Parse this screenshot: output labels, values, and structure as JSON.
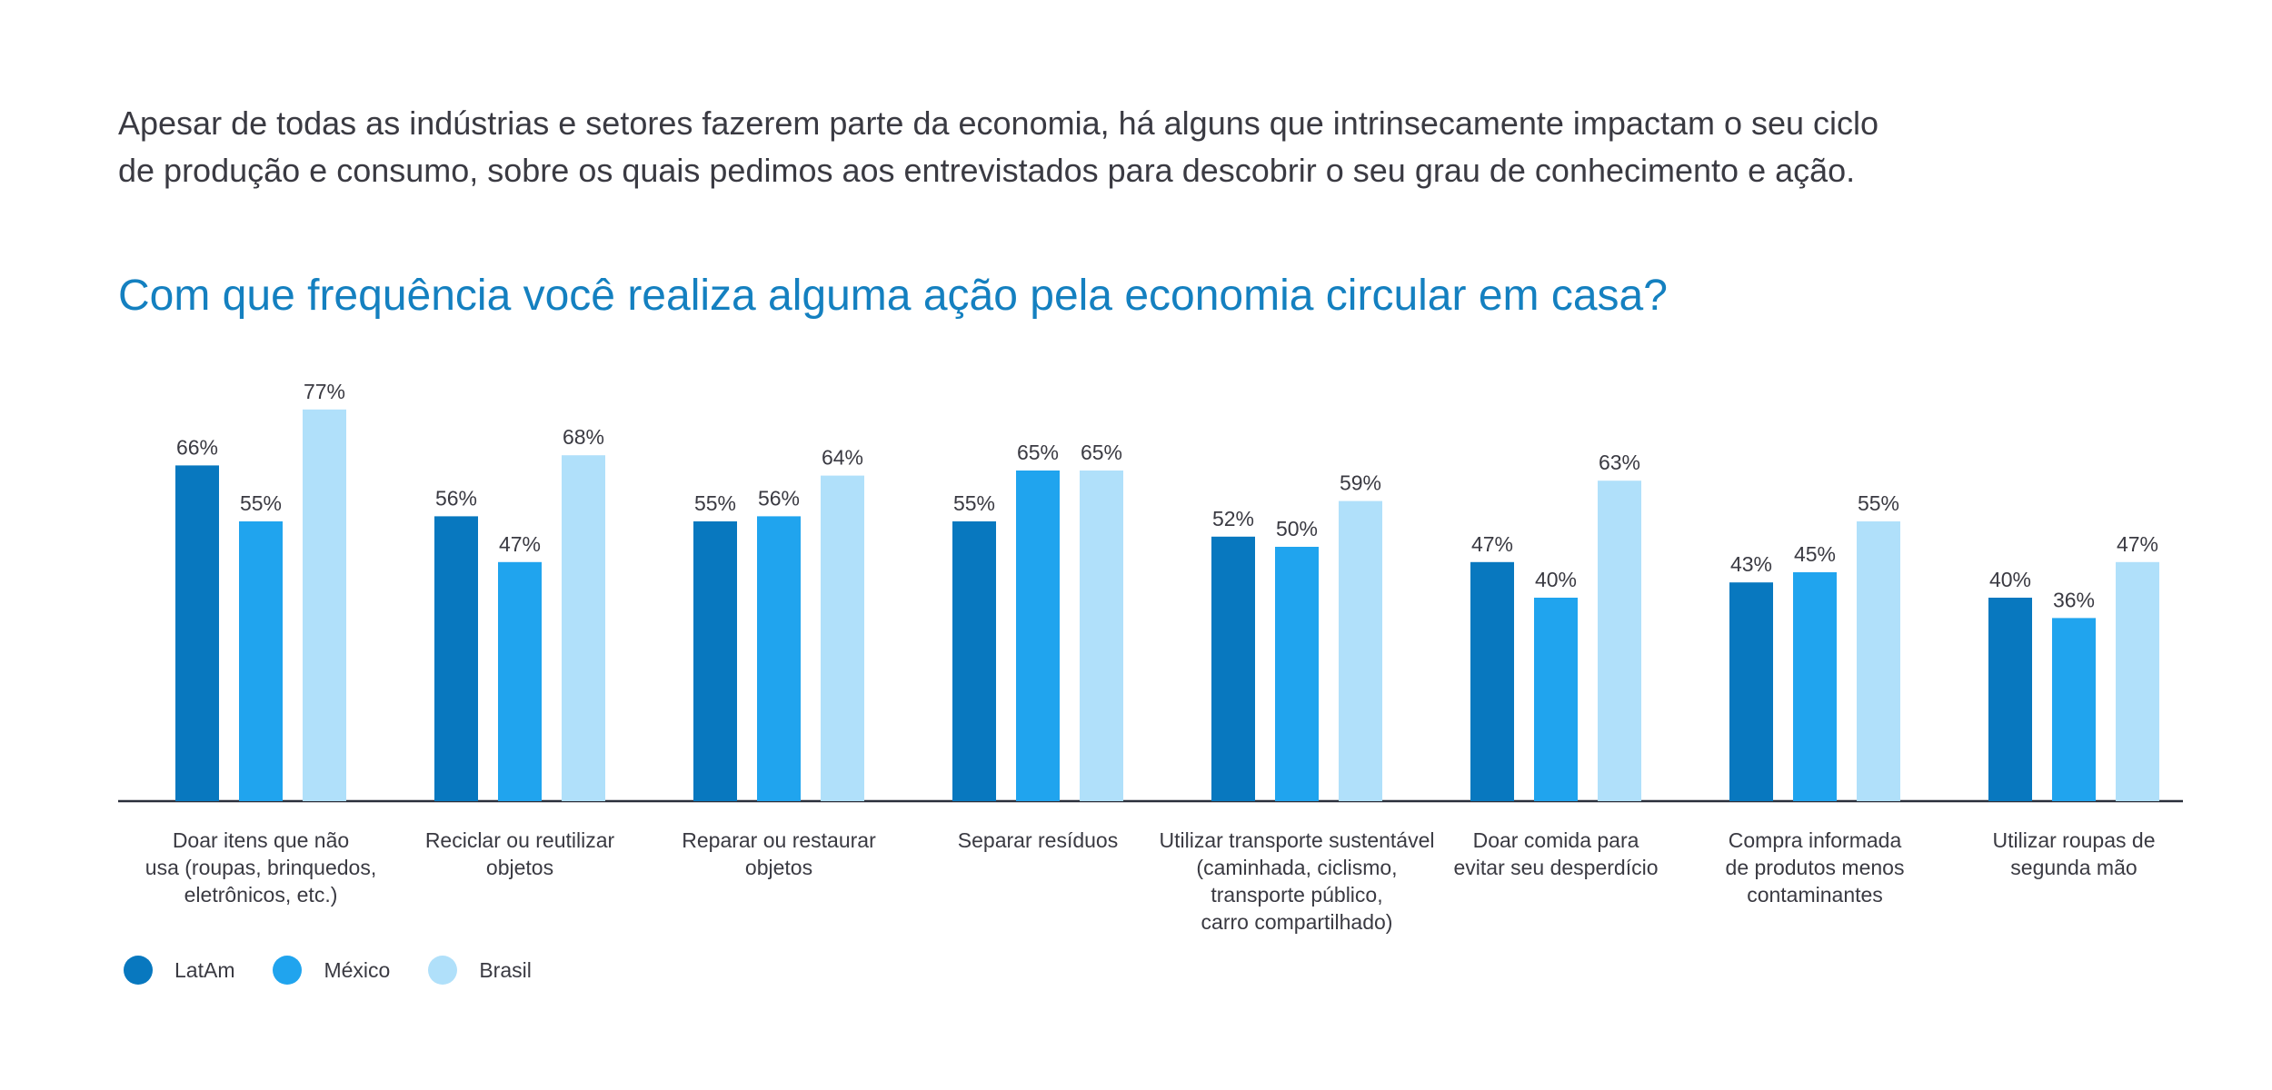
{
  "intro": {
    "line1": "Apesar de todas as indústrias e setores fazerem parte da economia, há alguns que intrinsecamente impactam o seu ciclo",
    "line2": "de produção e consumo, sobre os quais pedimos aos entrevistados para descobrir o seu grau de conhecimento e ação."
  },
  "chart_data": {
    "type": "bar",
    "title": "Com que frequência você realiza alguma ação pela economia circular em casa?",
    "value_suffix": "%",
    "ylim": [
      0,
      100
    ],
    "grid": false,
    "legend_position": "bottom-left",
    "categories": [
      "Doar itens que não usa (roupas, brinquedos, eletrônicos, etc.)",
      "Reciclar ou reutilizar objetos",
      "Reparar ou restaurar objetos",
      "Separar resíduos",
      "Utilizar transporte sustentável (caminhada, ciclismo, transporte público, carro compartilhado)",
      "Doar comida para evitar seu desperdício",
      "Compra informada de produtos menos contaminantes",
      "Utilizar roupas de segunda mão"
    ],
    "category_label_lines": [
      [
        "Doar itens que não",
        "usa (roupas, brinquedos,",
        "eletrônicos, etc.)"
      ],
      [
        "Reciclar ou reutilizar",
        "objetos"
      ],
      [
        "Reparar ou restaurar",
        "objetos"
      ],
      [
        "Separar resíduos"
      ],
      [
        "Utilizar transporte sustentável",
        "(caminhada, ciclismo,",
        "transporte público,",
        "carro compartilhado)"
      ],
      [
        "Doar comida para",
        "evitar seu desperdício"
      ],
      [
        "Compra informada",
        "de produtos menos",
        "contaminantes"
      ],
      [
        "Utilizar roupas de",
        "segunda mão"
      ]
    ],
    "series": [
      {
        "name": "LatAm",
        "color": "#0878bf",
        "values": [
          66,
          56,
          55,
          55,
          52,
          47,
          43,
          40
        ]
      },
      {
        "name": "México",
        "color": "#20a4ee",
        "values": [
          55,
          47,
          56,
          65,
          50,
          40,
          45,
          36
        ]
      },
      {
        "name": "Brasil",
        "color": "#b0e0fa",
        "values": [
          77,
          68,
          64,
          65,
          59,
          63,
          55,
          47
        ]
      }
    ],
    "axis_color": "#2a2f3a"
  }
}
